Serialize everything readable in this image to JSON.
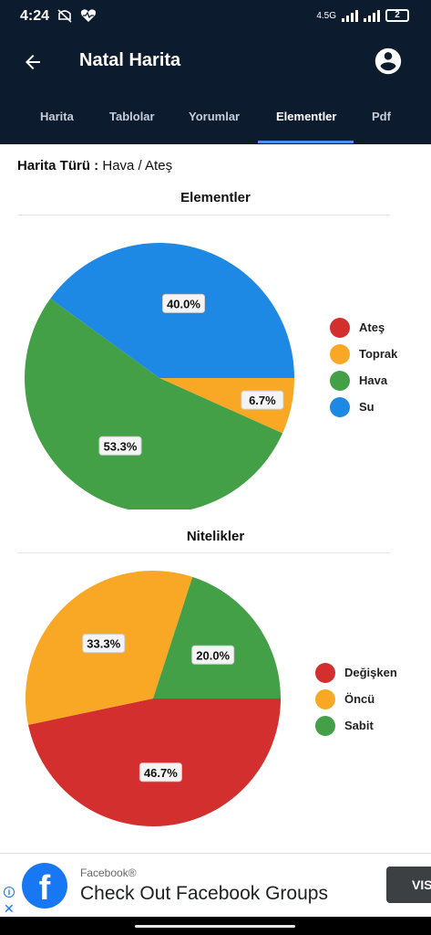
{
  "status_bar": {
    "time": "4:24",
    "network": "4.5G",
    "battery": "2"
  },
  "app_bar": {
    "title": "Natal Harita",
    "back_icon": "arrow-left-icon",
    "account_icon": "account-circle-icon"
  },
  "tabs": [
    {
      "label": "Harita",
      "active": false
    },
    {
      "label": "Tablolar",
      "active": false
    },
    {
      "label": "Yorumlar",
      "active": false
    },
    {
      "label": "Elementler",
      "active": true
    },
    {
      "label": "Pdf",
      "active": false
    }
  ],
  "chart_type": {
    "label": "Harita Türü :",
    "value": "Hava / Ateş"
  },
  "chart_data": [
    {
      "type": "pie",
      "title": "Elementler",
      "categories": [
        "Ateş",
        "Toprak",
        "Hava",
        "Su"
      ],
      "values": [
        0,
        6.7,
        53.3,
        40.0
      ],
      "value_labels": [
        "",
        "6.7%",
        "53.3%",
        "40.0%"
      ],
      "colors": [
        "#d32f2f",
        "#f9a825",
        "#43a047",
        "#1e88e5"
      ],
      "legend": "right"
    },
    {
      "type": "pie",
      "title": "Nitelikler",
      "categories": [
        "Değişken",
        "Öncü",
        "Sabit"
      ],
      "values": [
        46.7,
        33.3,
        20.0
      ],
      "value_labels": [
        "46.7%",
        "33.3%",
        "20.0%"
      ],
      "colors": [
        "#d32f2f",
        "#f9a825",
        "#43a047"
      ],
      "legend": "right"
    }
  ],
  "ad": {
    "advertiser": "Facebook®",
    "headline": "Check Out Facebook Groups",
    "cta": "VIS",
    "logo_letter": "f",
    "info_glyph": "i",
    "close_glyph": "✕"
  }
}
